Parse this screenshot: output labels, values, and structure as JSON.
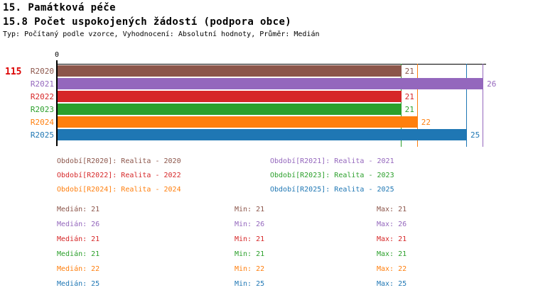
{
  "header": {
    "title1": "15. Památková péče",
    "title2": "15.8 Počet uspokojených žádostí (podpora obce)",
    "subtitle": "Typ: Počítaný podle vzorce, Vyhodnocení: Absolutní hodnoty, Průměr: Medián"
  },
  "indicator_number": "115",
  "axis": {
    "zero_label": "0"
  },
  "chart_data": {
    "type": "bar",
    "orientation": "horizontal",
    "title": "15.8 Počet uspokojených žádostí (podpora obce)",
    "categories": [
      "R2020",
      "R2021",
      "R2022",
      "R2023",
      "R2024",
      "R2025"
    ],
    "values": [
      21,
      26,
      21,
      21,
      22,
      25
    ],
    "colors": [
      "#8C564B",
      "#9467BD",
      "#D62728",
      "#2CA02C",
      "#FF7F0E",
      "#1F77B4"
    ],
    "median_guide_lines": [
      21,
      26,
      21,
      21,
      22,
      25
    ],
    "xlim": [
      0,
      26.2
    ],
    "grid": false,
    "value_labels_shown": true
  },
  "legend": {
    "left_column": [
      {
        "text": "Období[R2020]: Realita - 2020",
        "color": "#8C564B"
      },
      {
        "text": "Období[R2022]: Realita - 2022",
        "color": "#D62728"
      },
      {
        "text": "Období[R2024]: Realita - 2024",
        "color": "#FF7F0E"
      }
    ],
    "right_column": [
      {
        "text": "Období[R2021]: Realita - 2021",
        "color": "#9467BD"
      },
      {
        "text": "Období[R2023]: Realita - 2023",
        "color": "#2CA02C"
      },
      {
        "text": "Období[R2025]: Realita - 2025",
        "color": "#1F77B4"
      }
    ]
  },
  "stats": {
    "labels": {
      "median": "Medián",
      "min": "Min",
      "max": "Max"
    },
    "rows": [
      {
        "color": "#8C564B",
        "median": 21,
        "min": 21,
        "max": 21
      },
      {
        "color": "#9467BD",
        "median": 26,
        "min": 26,
        "max": 26
      },
      {
        "color": "#D62728",
        "median": 21,
        "min": 21,
        "max": 21
      },
      {
        "color": "#2CA02C",
        "median": 21,
        "min": 21,
        "max": 21
      },
      {
        "color": "#FF7F0E",
        "median": 22,
        "min": 22,
        "max": 22
      },
      {
        "color": "#1F77B4",
        "median": 25,
        "min": 25,
        "max": 25
      }
    ]
  }
}
